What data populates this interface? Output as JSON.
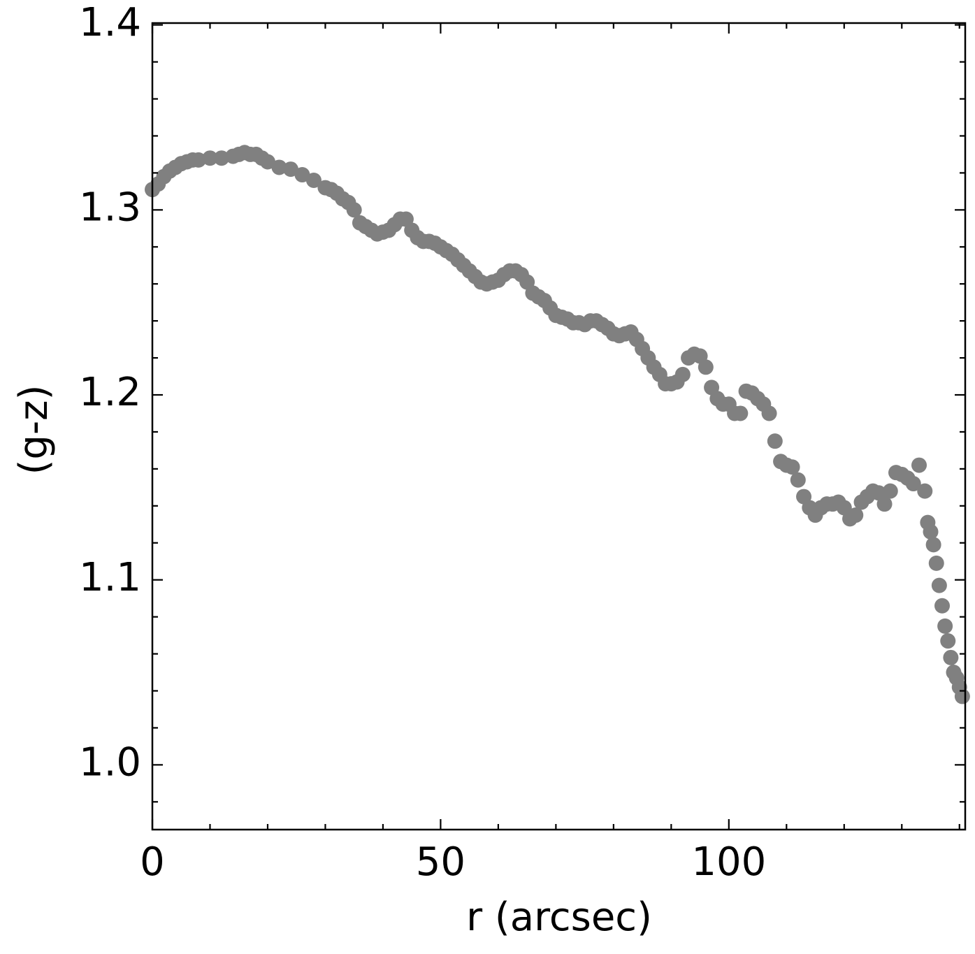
{
  "chart_data": {
    "type": "scatter",
    "xlabel": "r (arcsec)",
    "ylabel": "(g-z)",
    "color": "#808080",
    "xlim": [
      0,
      141
    ],
    "ylim": [
      0.965,
      1.401
    ],
    "xticks": [
      0,
      50,
      100
    ],
    "yticks": [
      {
        "value": 1.0,
        "label": "1.0"
      },
      1.1,
      1.2,
      1.3,
      1.4
    ],
    "xminorticks": [
      10,
      20,
      30,
      40,
      60,
      70,
      80,
      90,
      110,
      120,
      130,
      140
    ],
    "yminorticks": [
      0.98,
      1.02,
      1.04,
      1.06,
      1.08,
      1.12,
      1.14,
      1.16,
      1.18,
      1.22,
      1.24,
      1.26,
      1.28,
      1.32,
      1.34,
      1.36,
      1.38
    ],
    "x": [
      0,
      1,
      2,
      3,
      4,
      5,
      6,
      7,
      8,
      10,
      12,
      14,
      15,
      16,
      17,
      18,
      19,
      20,
      22,
      24,
      26,
      28,
      30,
      31,
      32,
      33,
      34,
      35,
      36,
      37,
      38,
      39,
      40,
      41,
      42,
      43,
      44,
      45,
      46,
      47,
      48,
      49,
      50,
      51,
      52,
      53,
      54,
      55,
      56,
      57,
      58,
      59,
      60,
      61,
      62,
      63,
      64,
      65,
      66,
      67,
      68,
      69,
      70,
      71,
      72,
      73,
      74,
      75,
      76,
      77,
      78,
      79,
      80,
      81,
      82,
      83,
      84,
      85,
      86,
      87,
      88,
      89,
      90,
      91,
      92,
      93,
      94,
      95,
      96,
      97,
      98,
      99,
      100,
      101,
      102,
      103,
      104,
      105,
      106,
      107,
      108,
      109,
      110,
      111,
      112,
      113,
      114,
      115,
      116,
      117,
      118,
      119,
      120,
      121,
      122,
      123,
      124,
      125,
      126,
      127,
      128,
      129,
      130,
      131,
      132,
      133,
      134,
      134.5,
      135,
      135.5,
      136,
      136.5,
      137,
      137.5,
      138,
      138.5,
      139,
      139.5,
      140,
      140.5
    ],
    "values": [
      1.311,
      1.314,
      1.318,
      1.321,
      1.323,
      1.325,
      1.326,
      1.327,
      1.327,
      1.328,
      1.328,
      1.329,
      1.33,
      1.331,
      1.33,
      1.33,
      1.328,
      1.326,
      1.323,
      1.322,
      1.319,
      1.316,
      1.312,
      1.311,
      1.309,
      1.306,
      1.304,
      1.3,
      1.293,
      1.291,
      1.289,
      1.287,
      1.288,
      1.289,
      1.292,
      1.295,
      1.295,
      1.289,
      1.285,
      1.283,
      1.283,
      1.282,
      1.28,
      1.278,
      1.276,
      1.273,
      1.27,
      1.267,
      1.264,
      1.261,
      1.26,
      1.261,
      1.262,
      1.265,
      1.267,
      1.267,
      1.265,
      1.261,
      1.255,
      1.253,
      1.251,
      1.247,
      1.243,
      1.242,
      1.241,
      1.239,
      1.239,
      1.238,
      1.24,
      1.24,
      1.238,
      1.236,
      1.233,
      1.232,
      1.233,
      1.234,
      1.23,
      1.225,
      1.22,
      1.215,
      1.211,
      1.206,
      1.206,
      1.207,
      1.211,
      1.22,
      1.222,
      1.221,
      1.215,
      1.204,
      1.198,
      1.195,
      1.195,
      1.19,
      1.19,
      1.202,
      1.201,
      1.198,
      1.195,
      1.19,
      1.175,
      1.164,
      1.162,
      1.161,
      1.154,
      1.145,
      1.139,
      1.135,
      1.139,
      1.141,
      1.141,
      1.142,
      1.139,
      1.133,
      1.135,
      1.142,
      1.145,
      1.148,
      1.147,
      1.141,
      1.148,
      1.158,
      1.157,
      1.155,
      1.152,
      1.162,
      1.148,
      1.131,
      1.126,
      1.119,
      1.109,
      1.097,
      1.086,
      1.075,
      1.067,
      1.058,
      1.05,
      1.047,
      1.042,
      1.037
    ]
  }
}
